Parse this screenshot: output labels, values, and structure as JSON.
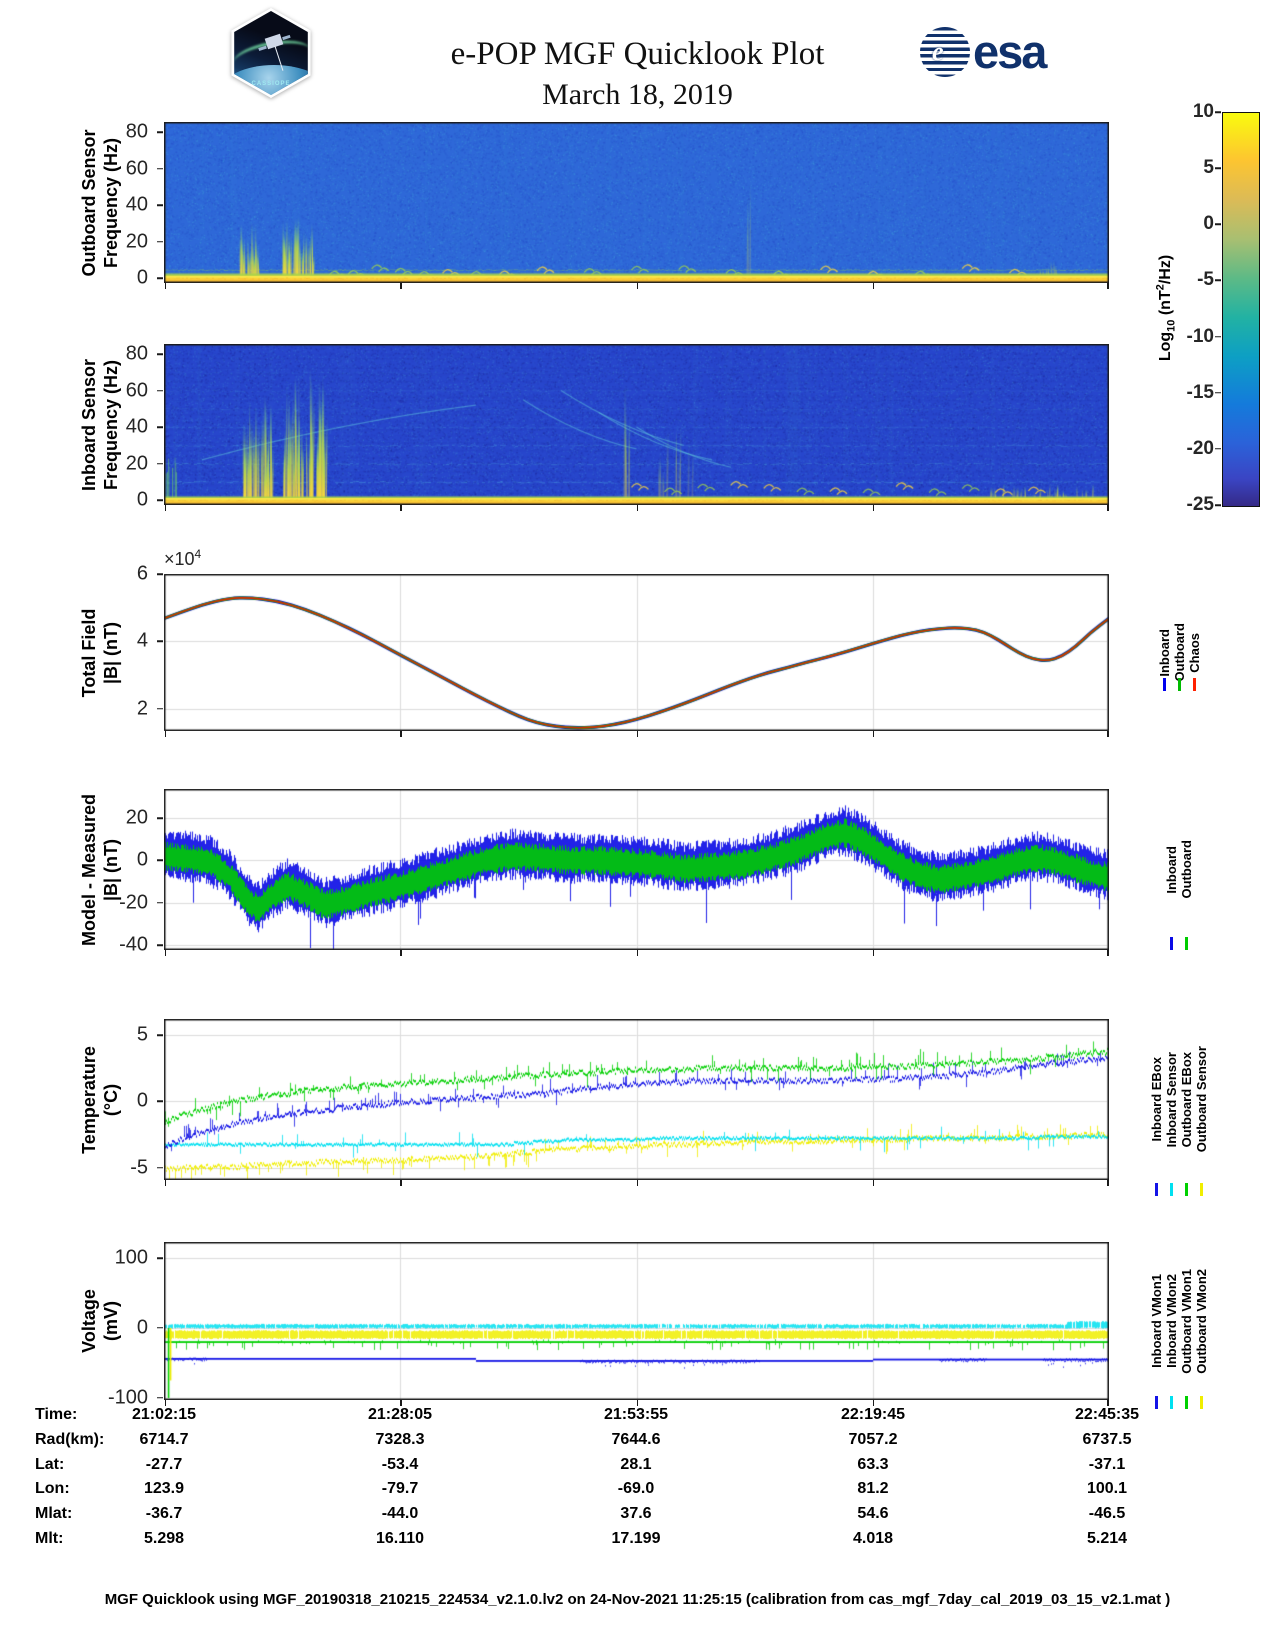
{
  "header": {
    "title": "e-POP MGF Quicklook Plot",
    "date": "March 18, 2019",
    "cassiope_logo_text": "CASSIOPE",
    "esa_logo_text": "esa",
    "esa_globe_char": "e"
  },
  "colorbar": {
    "label_prefix": "Log",
    "label_sub": "10",
    "label_mid": " (nT",
    "label_sup": "2",
    "label_suffix": "/Hz)",
    "ticks": [
      10,
      5,
      0,
      -5,
      -10,
      -15,
      -20,
      -25
    ],
    "range": [
      -25,
      10
    ]
  },
  "axis": {
    "xticks": [
      0.001,
      0.25,
      0.5,
      0.75,
      0.998
    ]
  },
  "panels": [
    {
      "key": "outboard_spec",
      "ylabel1": "Outboard Sensor",
      "ylabel2": "Frequency (Hz)",
      "yticks": [
        0,
        20,
        40,
        60,
        80
      ],
      "ylim": [
        -2.7,
        85.5
      ]
    },
    {
      "key": "inboard_spec",
      "ylabel1": "Inboard Sensor",
      "ylabel2": "Frequency (Hz)",
      "yticks": [
        0,
        20,
        40,
        60,
        80
      ],
      "ylim": [
        -2.7,
        85.5
      ]
    },
    {
      "key": "total_field",
      "ylabel1": "Total Field",
      "ylabel2": "|B| (nT)",
      "yticks": [
        2,
        4,
        6
      ],
      "ylim": [
        1.34,
        6
      ],
      "exp_times": "×10",
      "exp_power": "4",
      "legend": [
        {
          "label": "Inboard",
          "color": "#0000ee"
        },
        {
          "label": "Outboard",
          "color": "#00bb00"
        },
        {
          "label": "Chaos",
          "color": "#ff2000"
        }
      ]
    },
    {
      "key": "model_measured",
      "ylabel1": "Model - Measured",
      "ylabel2": "|B| (nT)",
      "yticks": [
        -40,
        -20,
        0,
        20
      ],
      "ylim": [
        -42.3,
        33.7
      ],
      "legend": [
        {
          "label": "Inboard",
          "color": "#0a0ae6"
        },
        {
          "label": "Outboard",
          "color": "#00cc00"
        }
      ]
    },
    {
      "key": "temperature",
      "ylabel1": "Temperature",
      "ylabel2": "(°C)",
      "yticks": [
        -5,
        0,
        5
      ],
      "ylim": [
        -5.91,
        6.21
      ],
      "legend": [
        {
          "label": "Inboard EBox",
          "color": "#1414e6"
        },
        {
          "label": "Inboard Sensor",
          "color": "#00e0f0"
        },
        {
          "label": "Outboard EBox",
          "color": "#00d000"
        },
        {
          "label": "Outboard Sensor",
          "color": "#f0ee00"
        }
      ]
    },
    {
      "key": "voltage",
      "ylabel1": "Voltage",
      "ylabel2": "(mV)",
      "yticks": [
        -100,
        0,
        100
      ],
      "ylim": [
        -103,
        123
      ],
      "legend": [
        {
          "label": "Inboard VMon1",
          "color": "#1414e6"
        },
        {
          "label": "Inboard VMon2",
          "color": "#00e0f0"
        },
        {
          "label": "Outboard VMon1",
          "color": "#00d000"
        },
        {
          "label": "Outboard VMon2",
          "color": "#f0ee00"
        }
      ]
    }
  ],
  "chart_data": [
    {
      "type": "heatmap",
      "panel": "outboard_spec",
      "title": "Outboard Sensor spectrogram, Log10 power (nT2/Hz), 0-85 Hz",
      "value_range_log10": [
        -25,
        10
      ],
      "features": {
        "base": "#2e68d8",
        "noise_dark": "#2443c4",
        "noise_light": "#41a0dc",
        "band_top_hz": 3.2,
        "faint_lines_hz": [
          4.6
        ],
        "burst_clusters": [
          {
            "x0": 0.08,
            "x1": 0.101,
            "top_hz": 30,
            "density": 26,
            "strength": 0.85
          },
          {
            "x0": 0.123,
            "x1": 0.158,
            "top_hz": 32,
            "density": 34,
            "strength": 0.9
          },
          {
            "x0": 0.615,
            "x1": 0.622,
            "top_hz": 55,
            "density": 4,
            "strength": 0.25
          },
          {
            "x0": 0.925,
            "x1": 0.945,
            "top_hz": 10,
            "density": 8,
            "strength": 0.5
          }
        ],
        "bottom_chirps_x": [
          0.18,
          0.2,
          0.225,
          0.25,
          0.275,
          0.3,
          0.33,
          0.36,
          0.4,
          0.45,
          0.5,
          0.55,
          0.6,
          0.65,
          0.7,
          0.75,
          0.8,
          0.85,
          0.9
        ],
        "chirp_hz": 5
      }
    },
    {
      "type": "heatmap",
      "panel": "inboard_spec",
      "title": "Inboard Sensor spectrogram, Log10 power (nT2/Hz), 0-85 Hz",
      "value_range_log10": [
        -25,
        10
      ],
      "features": {
        "base": "#2746cc",
        "noise_dark": "#1d2494",
        "noise_light": "#3f86d8",
        "band_top_hz": 2.6,
        "row_texture": true,
        "harmonics_hz": [
          10,
          20,
          30,
          40,
          50,
          60,
          70
        ],
        "left_col": {
          "x1": 0.013,
          "top_hz": 24
        },
        "burst_clusters": [
          {
            "x0": 0.08,
            "x1": 0.115,
            "top_hz": 55,
            "density": 40,
            "strength": 0.9
          },
          {
            "x0": 0.127,
            "x1": 0.172,
            "top_hz": 68,
            "density": 52,
            "strength": 0.95
          },
          {
            "x0": 0.487,
            "x1": 0.494,
            "top_hz": 80,
            "density": 5,
            "strength": 0.5
          },
          {
            "x0": 0.52,
            "x1": 0.56,
            "top_hz": 40,
            "density": 10,
            "strength": 0.35
          },
          {
            "x0": 0.87,
            "x1": 0.99,
            "top_hz": 9,
            "density": 30,
            "strength": 0.5
          }
        ],
        "arcs": [
          {
            "x0": 0.04,
            "y0": 22,
            "x1": 0.33,
            "y1": 52,
            "bend": -10
          },
          {
            "x0": 0.38,
            "y0": 55,
            "x1": 0.5,
            "y1": 28,
            "bend": 12
          },
          {
            "x0": 0.42,
            "y0": 60,
            "x1": 0.55,
            "y1": 30,
            "bend": 12
          },
          {
            "x0": 0.46,
            "y0": 48,
            "x1": 0.58,
            "y1": 22,
            "bend": 12
          },
          {
            "x0": 0.5,
            "y0": 40,
            "x1": 0.6,
            "y1": 18,
            "bend": 10
          }
        ],
        "bottom_chirps_x": [
          0.5,
          0.535,
          0.57,
          0.605,
          0.64,
          0.675,
          0.71,
          0.745,
          0.78,
          0.815,
          0.85,
          0.885,
          0.92
        ],
        "chirp_hz": 7
      }
    },
    {
      "type": "line",
      "panel": "total_field",
      "scale_exponent": 4,
      "x": [
        0,
        0.04,
        0.07,
        0.09,
        0.12,
        0.15,
        0.18,
        0.21,
        0.24,
        0.27,
        0.3,
        0.33,
        0.355,
        0.375,
        0.395,
        0.415,
        0.435,
        0.455,
        0.475,
        0.5,
        0.525,
        0.55,
        0.575,
        0.6,
        0.62,
        0.64,
        0.66,
        0.68,
        0.7,
        0.72,
        0.74,
        0.76,
        0.78,
        0.8,
        0.82,
        0.84,
        0.86,
        0.875,
        0.89,
        0.905,
        0.92,
        0.935,
        0.95,
        0.965,
        0.98,
        1.0
      ],
      "y": [
        4.68,
        5.1,
        5.28,
        5.3,
        5.2,
        4.95,
        4.6,
        4.2,
        3.75,
        3.3,
        2.85,
        2.4,
        2.05,
        1.78,
        1.58,
        1.47,
        1.43,
        1.45,
        1.52,
        1.68,
        1.9,
        2.15,
        2.42,
        2.7,
        2.9,
        3.08,
        3.22,
        3.38,
        3.52,
        3.68,
        3.85,
        4.02,
        4.18,
        4.3,
        4.38,
        4.41,
        4.35,
        4.18,
        3.92,
        3.65,
        3.47,
        3.42,
        3.55,
        3.85,
        4.25,
        4.68
      ],
      "series": [
        {
          "name": "Inboard",
          "color": "#0000ee"
        },
        {
          "name": "Outboard",
          "color": "#00aa00"
        },
        {
          "name": "Chaos",
          "color": "#e02800"
        }
      ]
    },
    {
      "type": "band-noisy",
      "panel": "model_measured",
      "center_x": [
        0,
        0.03,
        0.05,
        0.07,
        0.09,
        0.1,
        0.11,
        0.13,
        0.15,
        0.17,
        0.19,
        0.22,
        0.25,
        0.28,
        0.31,
        0.34,
        0.37,
        0.4,
        0.43,
        0.46,
        0.49,
        0.52,
        0.55,
        0.58,
        0.61,
        0.64,
        0.67,
        0.7,
        0.72,
        0.74,
        0.76,
        0.78,
        0.8,
        0.82,
        0.85,
        0.88,
        0.9,
        0.92,
        0.94,
        0.96,
        0.98,
        1.0
      ],
      "center_y": [
        2,
        0.5,
        -1,
        -8,
        -20,
        -23,
        -18,
        -12,
        -16,
        -21,
        -19,
        -15,
        -12,
        -8,
        -4,
        0,
        2,
        1,
        0,
        0,
        -1,
        -2,
        -4,
        -3,
        -2,
        1,
        5,
        11,
        13,
        9,
        3,
        -3,
        -7,
        -9,
        -7,
        -4,
        -1,
        1,
        0,
        -3,
        -6,
        -8
      ],
      "series": [
        {
          "name": "Inboard",
          "color": "#0a0ae6",
          "halfwidth": 9.5,
          "offset": 1
        },
        {
          "name": "Outboard",
          "color": "#00cc00",
          "halfwidth": 5.5,
          "offset": 0
        }
      ]
    },
    {
      "type": "line-noisy",
      "panel": "temperature",
      "series": [
        {
          "name": "Outboard Sensor",
          "color": "#f0ee00",
          "fuzz": 0.18,
          "spike_prob": 0.12,
          "x": [
            0,
            0.05,
            0.1,
            0.15,
            0.2,
            0.25,
            0.3,
            0.35,
            0.4,
            0.45,
            0.5,
            0.55,
            0.6,
            0.65,
            0.7,
            0.75,
            0.8,
            0.85,
            0.9,
            0.95,
            1.0
          ],
          "y": [
            -5.0,
            -4.95,
            -4.8,
            -4.65,
            -4.5,
            -4.4,
            -4.25,
            -4.05,
            -3.7,
            -3.5,
            -3.35,
            -3.2,
            -3.1,
            -3.0,
            -2.95,
            -2.9,
            -2.8,
            -2.75,
            -2.7,
            -2.6,
            -2.5
          ]
        },
        {
          "name": "Inboard Sensor",
          "color": "#00e0f0",
          "fuzz": 0.1,
          "spike_prob": 0.05,
          "x": [
            0,
            0.35,
            0.4,
            0.45,
            0.55,
            0.7,
            0.85,
            1.0
          ],
          "y": [
            -3.3,
            -3.3,
            -3.0,
            -2.85,
            -2.8,
            -2.8,
            -2.75,
            -2.65
          ]
        },
        {
          "name": "Inboard EBox",
          "color": "#1414e6",
          "fuzz": 0.2,
          "spike_prob": 0.12,
          "x": [
            0,
            0.02,
            0.05,
            0.08,
            0.11,
            0.15,
            0.2,
            0.25,
            0.3,
            0.35,
            0.4,
            0.45,
            0.5,
            0.55,
            0.6,
            0.65,
            0.7,
            0.75,
            0.8,
            0.85,
            0.88,
            0.92,
            0.96,
            1.0
          ],
          "y": [
            -3.4,
            -2.8,
            -2.1,
            -1.6,
            -1.2,
            -0.8,
            -0.4,
            -0.1,
            0.15,
            0.4,
            0.6,
            1.0,
            1.35,
            1.5,
            1.6,
            1.6,
            1.6,
            1.65,
            1.8,
            2.1,
            2.3,
            2.7,
            3.0,
            3.3
          ]
        },
        {
          "name": "Outboard EBox",
          "color": "#00d000",
          "fuzz": 0.2,
          "spike_prob": 0.12,
          "x": [
            0,
            0.02,
            0.05,
            0.08,
            0.11,
            0.15,
            0.2,
            0.25,
            0.3,
            0.35,
            0.4,
            0.45,
            0.5,
            0.55,
            0.6,
            0.65,
            0.7,
            0.75,
            0.8,
            0.85,
            0.9,
            0.95,
            1.0
          ],
          "y": [
            -1.6,
            -1.0,
            -0.4,
            0.1,
            0.45,
            0.8,
            1.1,
            1.35,
            1.55,
            1.75,
            2.0,
            2.2,
            2.35,
            2.45,
            2.5,
            2.5,
            2.55,
            2.6,
            2.7,
            2.9,
            3.1,
            3.4,
            3.8
          ]
        }
      ]
    },
    {
      "type": "line-noisy",
      "panel": "voltage",
      "transient_x": 0.004,
      "series": [
        {
          "name": "Inboard VMon2",
          "color": "#00e0f0",
          "style": "band",
          "lo": -1,
          "hi": 6,
          "prob": 0.9,
          "right_boost_x": 0.955,
          "right_hi": 10
        },
        {
          "name": "Outboard VMon2",
          "color": "#f0ee00",
          "style": "band",
          "lo": -16,
          "hi": -3,
          "prob": 0.97
        },
        {
          "name": "Inboard VMon1",
          "color": "#1414e6",
          "style": "steps",
          "steps_x": [
            0,
            0.33,
            0.75,
            1.0
          ],
          "steps_v": [
            -44,
            -47,
            -45
          ],
          "noise_regions": [
            [
              0,
              0.045
            ],
            [
              0.44,
              0.63
            ],
            [
              0.82,
              0.87
            ],
            [
              0.93,
              1.0
            ]
          ]
        },
        {
          "name": "Outboard VMon1",
          "color": "#00d000",
          "style": "line-ticks",
          "level": -20,
          "tick_lo": -32,
          "tick_prob": 0.12
        }
      ]
    }
  ],
  "table": {
    "rows": [
      {
        "label": "Time:",
        "values": [
          "21:02:15",
          "21:28:05",
          "21:53:55",
          "22:19:45",
          "22:45:35"
        ]
      },
      {
        "label": "Rad(km):",
        "values": [
          "6714.7",
          "7328.3",
          "7644.6",
          "7057.2",
          "6737.5"
        ]
      },
      {
        "label": "Lat:",
        "values": [
          "-27.7",
          "-53.4",
          "28.1",
          "63.3",
          "-37.1"
        ]
      },
      {
        "label": "Lon:",
        "values": [
          "123.9",
          "-79.7",
          "-69.0",
          "81.2",
          "100.1"
        ]
      },
      {
        "label": "Mlat:",
        "values": [
          "-36.7",
          "-44.0",
          "37.6",
          "54.6",
          "-46.5"
        ]
      },
      {
        "label": "Mlt:",
        "values": [
          "5.298",
          "16.110",
          "17.199",
          "4.018",
          "5.214"
        ]
      }
    ]
  },
  "footer": {
    "text": "MGF Quicklook using MGF_20190318_210215_224534_v2.1.0.lv2 on 24-Nov-2021 11:25:15 (calibration from cas_mgf_7day_cal_2019_03_15_v2.1.mat )"
  }
}
